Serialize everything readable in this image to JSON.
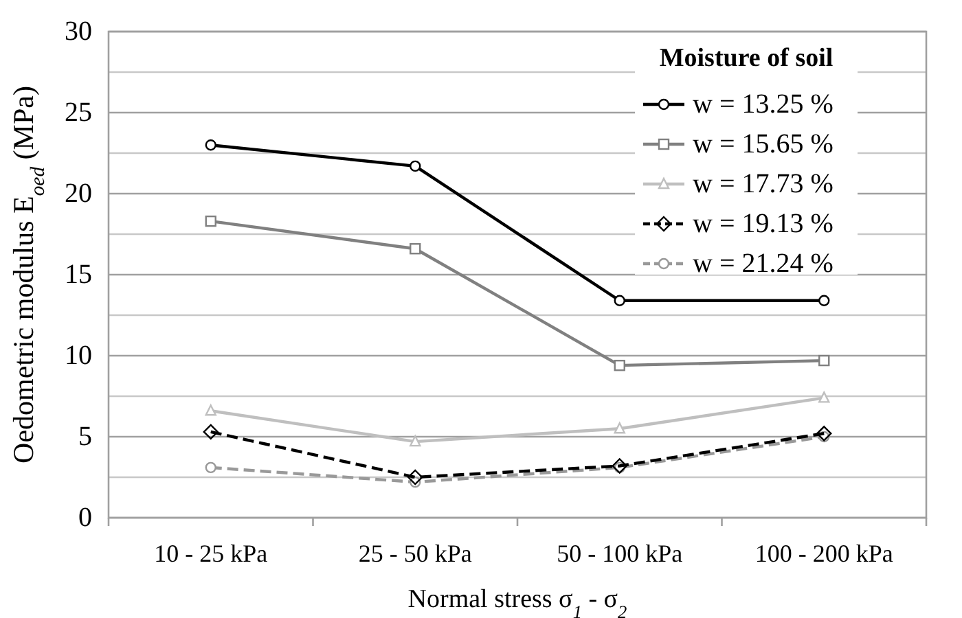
{
  "chart_data": {
    "type": "line",
    "xlabel": "Normal stress  σ$_{1}$ - σ$_{2}$",
    "ylabel": "Oedometric modulus  E$_{oed}$ (MPa)",
    "legend_title": "Moisture of soil",
    "legend": "top right",
    "grid": "y",
    "categories": [
      "10 - 25 kPa",
      "25 - 50 kPa",
      "50 - 100 kPa",
      "100 - 200 kPa"
    ],
    "ylim": [
      0,
      30
    ],
    "yticks": [
      0,
      {
        "value": 2.5,
        "label": null
      },
      5,
      {
        "value": 7.5,
        "label": null
      },
      10,
      {
        "value": 12.5,
        "label": null
      },
      15,
      {
        "value": 17.5,
        "label": null
      },
      20,
      {
        "value": 22.5,
        "label": null
      },
      25,
      {
        "value": 27.5,
        "label": null
      },
      30
    ],
    "series": [
      {
        "name": "w = 13.25 %",
        "color": "#000000",
        "marker": "circle",
        "line_style": "solid",
        "values": [
          23.0,
          21.7,
          13.4,
          13.4
        ]
      },
      {
        "name": "w = 15.65 %",
        "color": "#808080",
        "marker": "square",
        "line_style": "solid",
        "values": [
          18.3,
          16.6,
          9.4,
          9.7
        ]
      },
      {
        "name": "w = 17.73 %",
        "color": "#bfbfbf",
        "marker": "triangle",
        "line_style": "solid",
        "values": [
          6.6,
          4.7,
          5.5,
          7.4
        ]
      },
      {
        "name": "w = 19.13 %",
        "color": "#000000",
        "marker": "diamond",
        "line_style": "dashed",
        "values": [
          5.3,
          2.5,
          3.2,
          5.2
        ]
      },
      {
        "name": "w = 21.24 %",
        "color": "#999999",
        "marker": "circle",
        "line_style": "dashed",
        "values": [
          3.1,
          2.2,
          3.1,
          5.0
        ]
      }
    ]
  }
}
